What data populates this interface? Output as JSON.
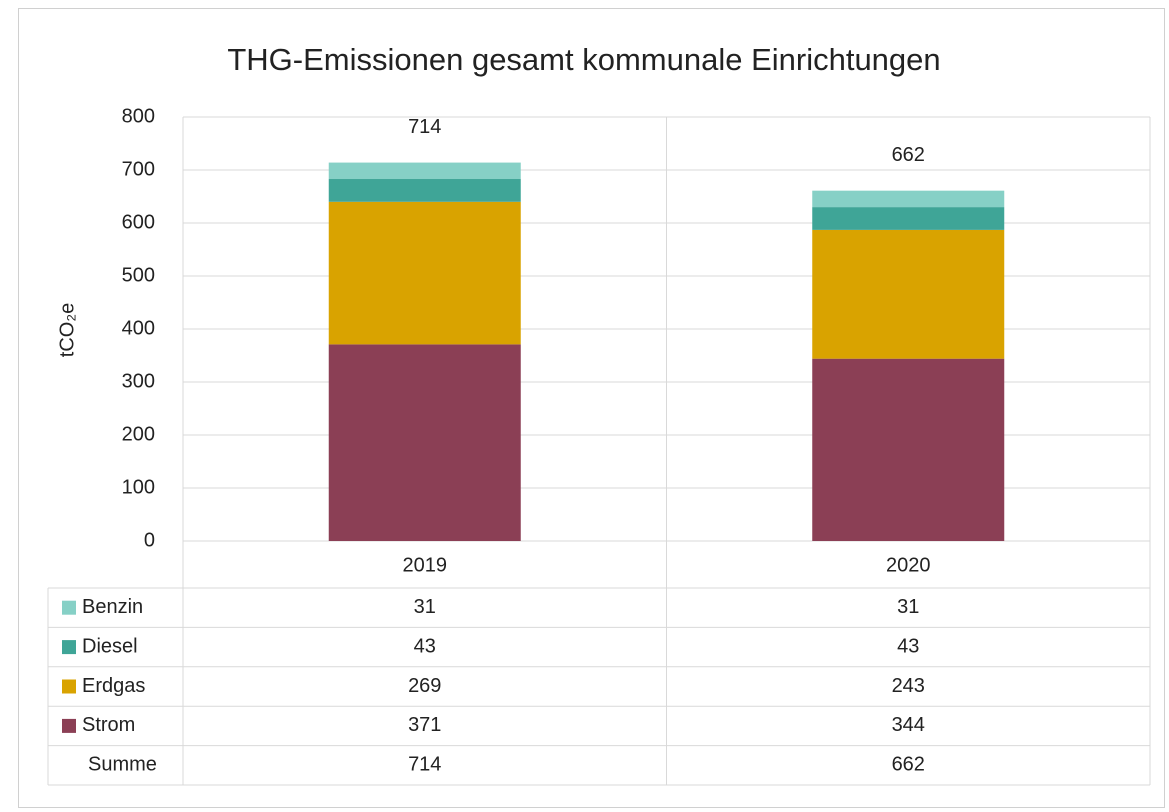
{
  "chart_data": {
    "type": "bar",
    "stacked": true,
    "title": "THG-Emissionen gesamt kommunale Einrichtungen",
    "ylabel": "tCO₂e",
    "categories": [
      "2019",
      "2020"
    ],
    "series": [
      {
        "name": "Strom",
        "color": "#8b3f55",
        "values": [
          371,
          344
        ]
      },
      {
        "name": "Erdgas",
        "color": "#d9a300",
        "values": [
          269,
          243
        ]
      },
      {
        "name": "Diesel",
        "color": "#3fa597",
        "values": [
          43,
          43
        ]
      },
      {
        "name": "Benzin",
        "color": "#86d0c6",
        "values": [
          31,
          31
        ]
      }
    ],
    "total_label": "Summe",
    "totals": [
      714,
      662
    ],
    "ylim": [
      0,
      800
    ],
    "yticks": [
      0,
      100,
      200,
      300,
      400,
      500,
      600,
      700,
      800
    ],
    "grid": true
  }
}
